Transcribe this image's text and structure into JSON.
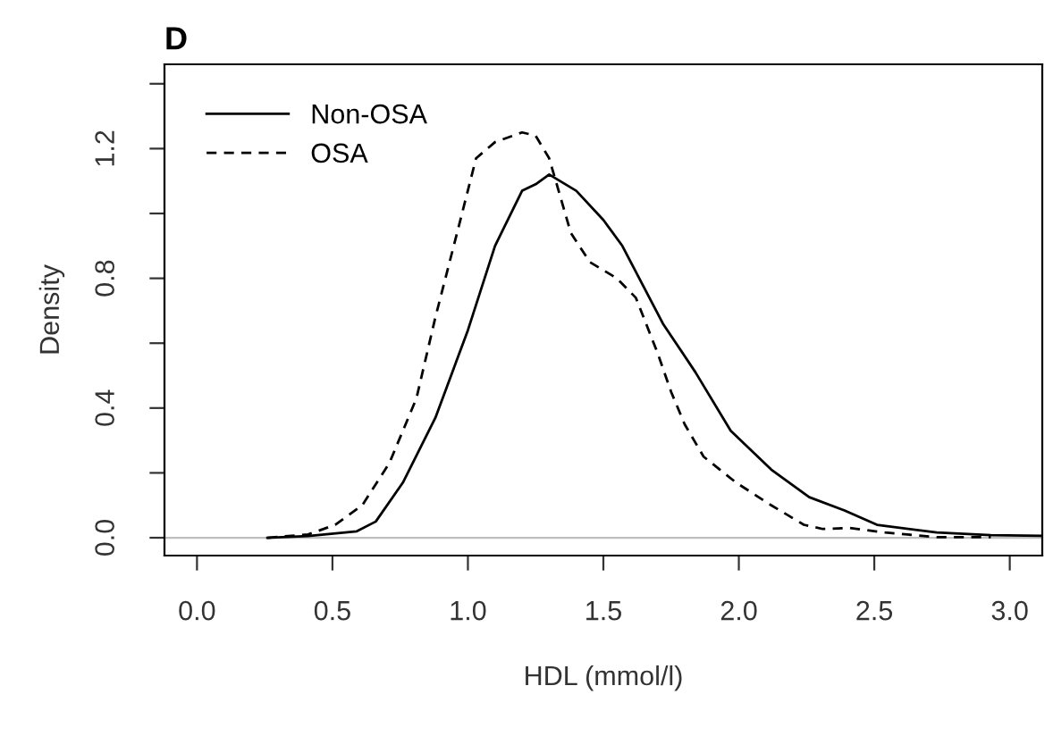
{
  "chart_data": {
    "type": "line",
    "title": "D",
    "xlabel": "HDL (mmol/l)",
    "ylabel": "Density",
    "xlim": [
      -0.12,
      3.12
    ],
    "ylim": [
      -0.055,
      1.46
    ],
    "xticks": [
      {
        "value": 0,
        "label": "0.0"
      },
      0.5,
      {
        "value": 1,
        "label": "1.0"
      },
      1.5,
      {
        "value": 2,
        "label": "2.0"
      },
      2.5,
      {
        "value": 3,
        "label": "3.0"
      }
    ],
    "yticks": [
      {
        "value": 0.0,
        "label": "0.0"
      },
      {
        "value": 0.2,
        "label": null
      },
      {
        "value": 0.4,
        "label": "0.4"
      },
      {
        "value": 0.6,
        "label": null
      },
      {
        "value": 0.8,
        "label": "0.8"
      },
      {
        "value": 1.0,
        "label": null
      },
      {
        "value": 1.2,
        "label": "1.2"
      },
      {
        "value": 1.4,
        "label": null
      }
    ],
    "grid": false,
    "legend": "top left",
    "ref_lines": [
      {
        "axis": "y",
        "value": 0,
        "color": "#bebebe"
      }
    ],
    "series": [
      {
        "name": "Non-OSA",
        "color": "#000000",
        "line_style": "solid",
        "x": [
          0.26,
          0.41,
          0.59,
          0.66,
          0.76,
          0.88,
          1.0,
          1.1,
          1.2,
          1.25,
          1.3,
          1.4,
          1.5,
          1.57,
          1.67,
          1.72,
          1.84,
          1.97,
          2.12,
          2.26,
          2.39,
          2.51,
          2.73,
          2.93,
          3.12
        ],
        "values": [
          0.0,
          0.005,
          0.02,
          0.05,
          0.17,
          0.37,
          0.64,
          0.9,
          1.07,
          1.09,
          1.12,
          1.07,
          0.98,
          0.9,
          0.74,
          0.66,
          0.51,
          0.33,
          0.21,
          0.125,
          0.084,
          0.04,
          0.016,
          0.008,
          0.006
        ]
      },
      {
        "name": "OSA",
        "color": "#000000",
        "line_style": "dashed",
        "x": [
          0.26,
          0.41,
          0.51,
          0.61,
          0.71,
          0.81,
          0.88,
          0.96,
          1.03,
          1.1,
          1.2,
          1.25,
          1.3,
          1.38,
          1.45,
          1.55,
          1.62,
          1.7,
          1.75,
          1.8,
          1.87,
          1.99,
          2.12,
          2.24,
          2.31,
          2.41,
          2.54,
          2.73,
          2.93
        ],
        "values": [
          0.0,
          0.01,
          0.04,
          0.1,
          0.23,
          0.43,
          0.68,
          0.94,
          1.17,
          1.22,
          1.25,
          1.24,
          1.17,
          0.94,
          0.85,
          0.8,
          0.74,
          0.57,
          0.45,
          0.35,
          0.25,
          0.17,
          0.1,
          0.04,
          0.027,
          0.03,
          0.016,
          0.002,
          0.002
        ]
      }
    ]
  }
}
